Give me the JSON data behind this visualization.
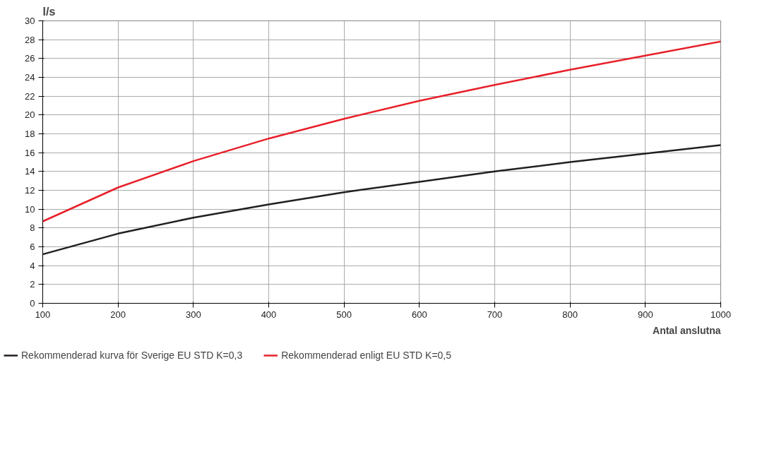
{
  "chart_data": {
    "type": "line",
    "ylabel": "l/s",
    "xlabel": "Antal anslutna",
    "x": [
      100,
      200,
      300,
      400,
      500,
      600,
      700,
      800,
      900,
      1000
    ],
    "series": [
      {
        "name": "Rekommenderad kurva för Sverige EU STD K=0,3",
        "color": "#231f20",
        "values": [
          5.2,
          7.4,
          9.1,
          10.5,
          11.8,
          12.9,
          14.0,
          15.0,
          15.9,
          16.8
        ]
      },
      {
        "name": "Rekommenderad enligt EU STD K=0,5",
        "color": "#e8202a",
        "values": [
          8.7,
          12.3,
          15.1,
          17.5,
          19.6,
          21.5,
          23.2,
          24.8,
          26.3,
          27.8
        ]
      }
    ],
    "xlim": [
      100,
      1000
    ],
    "xticks": [
      100,
      200,
      300,
      400,
      500,
      600,
      700,
      800,
      900,
      1000
    ],
    "ylim": [
      0,
      30
    ],
    "yticks": [
      0,
      2,
      4,
      6,
      8,
      10,
      12,
      14,
      16,
      18,
      20,
      22,
      24,
      26,
      28,
      30
    ],
    "grid": true,
    "legend": "bottom",
    "marker": "none",
    "line_style": "solid"
  }
}
